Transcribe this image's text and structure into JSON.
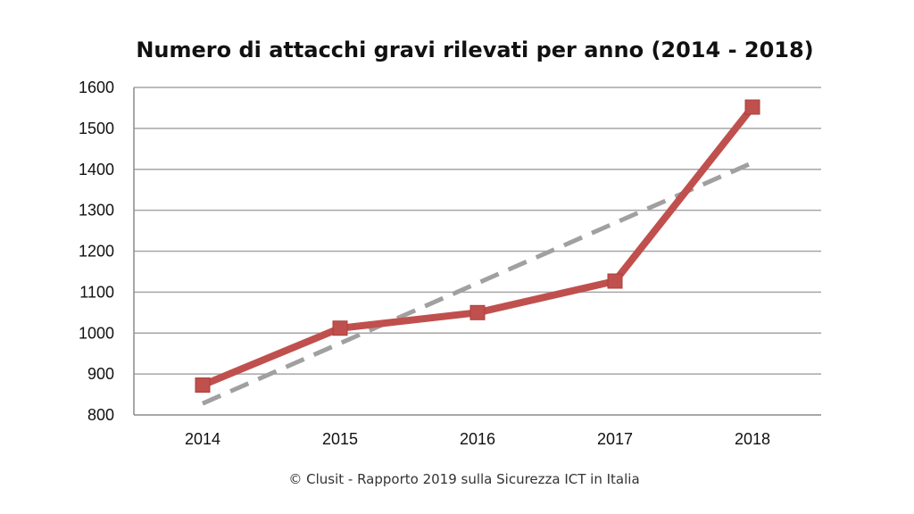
{
  "chart_data": {
    "type": "line",
    "title": "Numero di attacchi gravi rilevati per anno (2014 - 2018)",
    "categories": [
      "2014",
      "2015",
      "2016",
      "2017",
      "2018"
    ],
    "series": [
      {
        "values": [
          873,
          1012,
          1050,
          1127,
          1552
        ],
        "color": "#c0504d",
        "marker": "square"
      }
    ],
    "trendline": {
      "style": "dashed",
      "color": "#a0a0a0",
      "values": [
        828,
        975,
        1122,
        1269,
        1416
      ]
    },
    "ylim": [
      800,
      1600
    ],
    "yticks": [
      "800",
      "900",
      "1000",
      "1100",
      "1200",
      "1300",
      "1400",
      "1500",
      "1600"
    ],
    "xlabel": "",
    "ylabel": "",
    "grid": true,
    "legend": "none"
  },
  "footer": "© Clusit - Rapporto 2019 sulla Sicurezza ICT in Italia"
}
